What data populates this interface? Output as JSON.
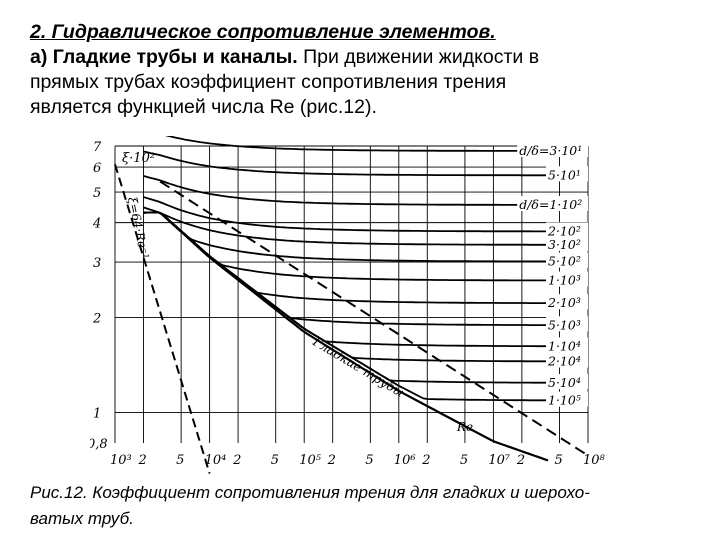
{
  "text": {
    "heading": "2. Гидравлическое сопротивление элементов.",
    "para_bold": "а) Гладкие трубы и каналы.",
    "para_line1_rest": " При движении жидкости в",
    "para_line2": "прямых трубах коэффициент сопротивления трения",
    "para_line3": "является функцией числа Re (рис.12)."
  },
  "caption": {
    "line1": "Рис.12. Коэффициент сопротивления трения для гладких и шерохо-",
    "line2": "ватых труб."
  },
  "chart_data": {
    "type": "line",
    "x_scale": "log",
    "y_scale": "log",
    "xlim": [
      1000,
      100000000
    ],
    "ylim": [
      0.008,
      0.07
    ],
    "ylabel": "ξ·10²",
    "xlabel": "Re",
    "x_ticks": [
      "10³",
      "2",
      "5",
      "10⁴",
      "2",
      "5",
      "10⁵",
      "2",
      "5",
      "10⁶",
      "2",
      "5",
      "10⁷",
      "2",
      "5",
      "10⁸"
    ],
    "y_ticks": [
      "7",
      "6",
      "5",
      "4",
      "3",
      "2",
      "1",
      "0,8"
    ],
    "annotations": {
      "laminar": "ξ=64·Re⁻¹",
      "smooth": "Гладкие трубы"
    },
    "smooth_pipes": {
      "x": [
        3000,
        10000,
        100000,
        1000000,
        10000000,
        40000000
      ],
      "y": [
        0.043,
        0.031,
        0.018,
        0.0117,
        0.0081,
        0.007
      ]
    },
    "laminar": {
      "x": [
        1000,
        10000
      ],
      "y": [
        0.064,
        0.0064
      ]
    },
    "transition_boundary": {
      "x": [
        3000,
        100000000
      ],
      "y": [
        0.054,
        0.0073
      ]
    },
    "series": [
      {
        "name": "d/δ=3·10¹",
        "label": "d/δ=3·10¹",
        "lambda": 0.0675
      },
      {
        "name": "5·10¹",
        "label": "5·10¹",
        "lambda": 0.0565
      },
      {
        "name": "d/δ=1·10²",
        "label": "d/δ=1·10²",
        "lambda": 0.0455
      },
      {
        "name": "2·10²",
        "label": "2·10²",
        "lambda": 0.0375
      },
      {
        "name": "3·10²",
        "label": "3·10²",
        "lambda": 0.034
      },
      {
        "name": "5·10²",
        "label": "5·10²",
        "lambda": 0.0301
      },
      {
        "name": "1·10³",
        "label": "1·10³",
        "lambda": 0.0262
      },
      {
        "name": "2·10³",
        "label": "2·10³",
        "lambda": 0.0222
      },
      {
        "name": "5·10³",
        "label": "5·10³",
        "lambda": 0.0189
      },
      {
        "name": "1·10⁴",
        "label": "1·10⁴",
        "lambda": 0.0162
      },
      {
        "name": "2·10⁴",
        "label": "2·10⁴",
        "lambda": 0.0145
      },
      {
        "name": "5·10⁴",
        "label": "5·10⁴",
        "lambda": 0.0124
      },
      {
        "name": "1·10⁵",
        "label": "1·10⁵",
        "lambda": 0.0109
      }
    ]
  }
}
